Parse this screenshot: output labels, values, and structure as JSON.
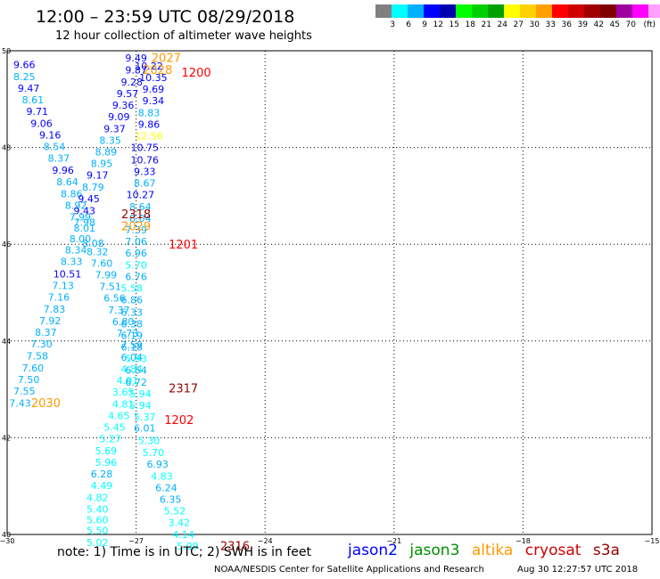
{
  "header": {
    "title": "12:00 – 23:59 UTC 08/29/2018",
    "subtitle": "12 hour collection of altimeter wave heights"
  },
  "color_legend": {
    "colors": [
      "#808080",
      "#00ffff",
      "#00b0ff",
      "#0000ff",
      "#0000b0",
      "#00ff00",
      "#00d000",
      "#00a000",
      "#ffff00",
      "#ffd000",
      "#ffa000",
      "#ff0000",
      "#d00000",
      "#a00000",
      "#800000",
      "#a000a0",
      "#ff00ff",
      "#ffa0ff",
      "#000000"
    ],
    "labels": [
      "3",
      "6",
      "9",
      "12",
      "15",
      "18",
      "21",
      "24",
      "27",
      "30",
      "33",
      "36",
      "39",
      "42",
      "45",
      "70",
      "(ft)"
    ]
  },
  "footer": {
    "note": "note: 1) Time is in UTC; 2) SWH is in feet",
    "credit": "NOAA/NESDIS Center for Satellite Applications and Research",
    "timestamp": "Aug 30 12:27:57 UTC 2018"
  },
  "satellites": [
    {
      "name": "jason2",
      "color": "#0000ff"
    },
    {
      "name": "jason3",
      "color": "#009000"
    },
    {
      "name": "altika",
      "color": "#ff9900"
    },
    {
      "name": "cryosat",
      "color": "#cc0000"
    },
    {
      "name": "s3a",
      "color": "#990000"
    }
  ],
  "chart_data": {
    "type": "scatter",
    "title": "12:00 – 23:59 UTC 08/29/2018",
    "subtitle": "12 hour collection of altimeter wave heights",
    "xlim": [
      -30,
      -15
    ],
    "ylim": [
      40,
      50
    ],
    "xticks": [
      -30,
      -27,
      -24,
      -21,
      -18,
      -15
    ],
    "yticks": [
      40,
      42,
      44,
      46,
      48,
      50
    ],
    "xtick_labels": [
      "−30",
      "−27",
      "−24",
      "−21",
      "−18",
      "−15"
    ],
    "ytick_labels": [
      "40",
      "42",
      "44",
      "46",
      "48",
      "50"
    ],
    "grid": true,
    "units": "ft",
    "points": [
      {
        "x": -29.6,
        "y": 49.7,
        "v": "9.66",
        "c": "#0000ff"
      },
      {
        "x": -29.6,
        "y": 49.45,
        "v": "8.25",
        "c": "#00b0ff"
      },
      {
        "x": -29.5,
        "y": 49.21,
        "v": "9.47",
        "c": "#0000ff"
      },
      {
        "x": -29.4,
        "y": 48.97,
        "v": "8.61",
        "c": "#00b0ff"
      },
      {
        "x": -29.3,
        "y": 48.73,
        "v": "9.71",
        "c": "#0000ff"
      },
      {
        "x": -29.2,
        "y": 48.48,
        "v": "9.06",
        "c": "#0000ff"
      },
      {
        "x": -29.0,
        "y": 48.24,
        "v": "9.16",
        "c": "#0000ff"
      },
      {
        "x": -28.9,
        "y": 48.0,
        "v": "8.54",
        "c": "#00b0ff"
      },
      {
        "x": -28.8,
        "y": 47.76,
        "v": "8.37",
        "c": "#00b0ff"
      },
      {
        "x": -28.7,
        "y": 47.51,
        "v": "9.96",
        "c": "#0000ff"
      },
      {
        "x": -28.6,
        "y": 47.27,
        "v": "8.64",
        "c": "#00b0ff"
      },
      {
        "x": -28.5,
        "y": 47.03,
        "v": "8.86",
        "c": "#00b0ff"
      },
      {
        "x": -28.4,
        "y": 46.79,
        "v": "8.92",
        "c": "#00b0ff"
      },
      {
        "x": -28.3,
        "y": 46.55,
        "v": "7.99",
        "c": "#00b0ff"
      },
      {
        "x": -28.2,
        "y": 46.32,
        "v": "8.01",
        "c": "#00b0ff"
      },
      {
        "x": -28.3,
        "y": 46.1,
        "v": "8.00",
        "c": "#00b0ff"
      },
      {
        "x": -28.4,
        "y": 45.87,
        "v": "8.34",
        "c": "#00b0ff"
      },
      {
        "x": -28.5,
        "y": 45.63,
        "v": "8.33",
        "c": "#00b0ff"
      },
      {
        "x": -28.6,
        "y": 45.37,
        "v": "10.51",
        "c": "#0000ff"
      },
      {
        "x": -28.7,
        "y": 45.13,
        "v": "7.13",
        "c": "#00b0ff"
      },
      {
        "x": -28.8,
        "y": 44.89,
        "v": "7.16",
        "c": "#00b0ff"
      },
      {
        "x": -28.9,
        "y": 44.64,
        "v": "7.83",
        "c": "#00b0ff"
      },
      {
        "x": -29.0,
        "y": 44.4,
        "v": "7.92",
        "c": "#00b0ff"
      },
      {
        "x": -29.1,
        "y": 44.16,
        "v": "8.37",
        "c": "#00b0ff"
      },
      {
        "x": -29.2,
        "y": 43.92,
        "v": "7.30",
        "c": "#00b0ff"
      },
      {
        "x": -29.3,
        "y": 43.67,
        "v": "7.58",
        "c": "#00b0ff"
      },
      {
        "x": -29.4,
        "y": 43.43,
        "v": "7.60",
        "c": "#00b0ff"
      },
      {
        "x": -29.5,
        "y": 43.19,
        "v": "7.50",
        "c": "#00b0ff"
      },
      {
        "x": -29.6,
        "y": 42.95,
        "v": "7.55",
        "c": "#00b0ff"
      },
      {
        "x": -29.7,
        "y": 42.7,
        "v": "7.43",
        "c": "#00b0ff"
      },
      {
        "x": -27.0,
        "y": 49.83,
        "v": "9.49",
        "c": "#0000ff"
      },
      {
        "x": -27.0,
        "y": 49.59,
        "v": "9.87",
        "c": "#0000ff"
      },
      {
        "x": -27.1,
        "y": 49.34,
        "v": "9.28",
        "c": "#0000ff"
      },
      {
        "x": -27.2,
        "y": 49.1,
        "v": "9.57",
        "c": "#0000ff"
      },
      {
        "x": -27.3,
        "y": 48.86,
        "v": "9.36",
        "c": "#0000ff"
      },
      {
        "x": -27.4,
        "y": 48.62,
        "v": "9.09",
        "c": "#0000ff"
      },
      {
        "x": -27.5,
        "y": 48.37,
        "v": "9.37",
        "c": "#0000ff"
      },
      {
        "x": -27.6,
        "y": 48.13,
        "v": "8.35",
        "c": "#00b0ff"
      },
      {
        "x": -27.7,
        "y": 47.89,
        "v": "8.89",
        "c": "#00b0ff"
      },
      {
        "x": -27.8,
        "y": 47.65,
        "v": "8.95",
        "c": "#00b0ff"
      },
      {
        "x": -27.9,
        "y": 47.41,
        "v": "9.17",
        "c": "#0000ff"
      },
      {
        "x": -28.0,
        "y": 47.16,
        "v": "8.79",
        "c": "#00b0ff"
      },
      {
        "x": -28.1,
        "y": 46.92,
        "v": "9.45",
        "c": "#0000ff"
      },
      {
        "x": -28.2,
        "y": 46.68,
        "v": "9.43",
        "c": "#0000ff"
      },
      {
        "x": -28.2,
        "y": 46.44,
        "v": "7.98",
        "c": "#00b0ff"
      },
      {
        "x": -28.0,
        "y": 46.0,
        "v": "8.08",
        "c": "#00b0ff"
      },
      {
        "x": -27.9,
        "y": 45.83,
        "v": "8.32",
        "c": "#00b0ff"
      },
      {
        "x": -27.8,
        "y": 45.59,
        "v": "7.60",
        "c": "#00b0ff"
      },
      {
        "x": -27.7,
        "y": 45.35,
        "v": "7.99",
        "c": "#00b0ff"
      },
      {
        "x": -27.6,
        "y": 45.11,
        "v": "7.51",
        "c": "#00b0ff"
      },
      {
        "x": -27.5,
        "y": 44.87,
        "v": "6.56",
        "c": "#00b0ff"
      },
      {
        "x": -27.4,
        "y": 44.62,
        "v": "7.37",
        "c": "#00b0ff"
      },
      {
        "x": -27.3,
        "y": 44.38,
        "v": "6.80",
        "c": "#00b0ff"
      },
      {
        "x": -27.2,
        "y": 44.14,
        "v": "7.73",
        "c": "#00b0ff"
      },
      {
        "x": -27.1,
        "y": 43.9,
        "v": "7.59",
        "c": "#00b0ff"
      },
      {
        "x": -27.1,
        "y": 43.65,
        "v": "6.04",
        "c": "#00b0ff"
      },
      {
        "x": -27.1,
        "y": 43.41,
        "v": "4.84",
        "c": "#00ffff"
      },
      {
        "x": -27.2,
        "y": 43.17,
        "v": "4.91",
        "c": "#00ffff"
      },
      {
        "x": -27.3,
        "y": 42.93,
        "v": "3.65",
        "c": "#00ffff"
      },
      {
        "x": -27.3,
        "y": 42.68,
        "v": "4.81",
        "c": "#00ffff"
      },
      {
        "x": -27.4,
        "y": 42.44,
        "v": "4.65",
        "c": "#00ffff"
      },
      {
        "x": -27.5,
        "y": 42.2,
        "v": "5.45",
        "c": "#00ffff"
      },
      {
        "x": -27.6,
        "y": 41.96,
        "v": "5.27",
        "c": "#00ffff"
      },
      {
        "x": -27.7,
        "y": 41.71,
        "v": "5.69",
        "c": "#00ffff"
      },
      {
        "x": -27.7,
        "y": 41.47,
        "v": "5.96",
        "c": "#00ffff"
      },
      {
        "x": -27.8,
        "y": 41.23,
        "v": "6.28",
        "c": "#00b0ff"
      },
      {
        "x": -27.8,
        "y": 40.99,
        "v": "4.49",
        "c": "#00ffff"
      },
      {
        "x": -27.9,
        "y": 40.75,
        "v": "4.82",
        "c": "#00ffff"
      },
      {
        "x": -27.9,
        "y": 40.51,
        "v": "5.40",
        "c": "#00ffff"
      },
      {
        "x": -27.9,
        "y": 40.29,
        "v": "5.60",
        "c": "#00ffff"
      },
      {
        "x": -27.9,
        "y": 40.06,
        "v": "5.50",
        "c": "#00ffff"
      },
      {
        "x": -27.9,
        "y": 39.82,
        "v": "5.02",
        "c": "#00ffff"
      },
      {
        "x": -26.7,
        "y": 49.67,
        "v": "10.22",
        "c": "#0000ff"
      },
      {
        "x": -26.6,
        "y": 49.43,
        "v": "10.35",
        "c": "#0000ff"
      },
      {
        "x": -26.6,
        "y": 49.19,
        "v": "9.69",
        "c": "#0000ff"
      },
      {
        "x": -26.6,
        "y": 48.95,
        "v": "9.34",
        "c": "#0000ff"
      },
      {
        "x": -26.7,
        "y": 48.7,
        "v": "8.83",
        "c": "#00b0ff"
      },
      {
        "x": -26.7,
        "y": 48.46,
        "v": "9.86",
        "c": "#0000ff"
      },
      {
        "x": -26.7,
        "y": 48.22,
        "v": "12.56",
        "c": "#ffff00"
      },
      {
        "x": -26.8,
        "y": 47.98,
        "v": "10.75",
        "c": "#0000ff"
      },
      {
        "x": -26.8,
        "y": 47.73,
        "v": "10.76",
        "c": "#0000ff"
      },
      {
        "x": -26.8,
        "y": 47.49,
        "v": "9.33",
        "c": "#0000ff"
      },
      {
        "x": -26.8,
        "y": 47.25,
        "v": "8.67",
        "c": "#00b0ff"
      },
      {
        "x": -26.9,
        "y": 47.01,
        "v": "10.27",
        "c": "#0000ff"
      },
      {
        "x": -26.9,
        "y": 46.76,
        "v": "8.64",
        "c": "#00b0ff"
      },
      {
        "x": -26.9,
        "y": 46.52,
        "v": "8.04",
        "c": "#00b0ff"
      },
      {
        "x": -27.0,
        "y": 46.28,
        "v": "7.39",
        "c": "#00b0ff"
      },
      {
        "x": -27.0,
        "y": 46.04,
        "v": "7.06",
        "c": "#00b0ff"
      },
      {
        "x": -27.0,
        "y": 45.8,
        "v": "6.96",
        "c": "#00b0ff"
      },
      {
        "x": -27.0,
        "y": 45.55,
        "v": "5.70",
        "c": "#00ffff"
      },
      {
        "x": -27.0,
        "y": 45.31,
        "v": "6.76",
        "c": "#00b0ff"
      },
      {
        "x": -27.1,
        "y": 45.07,
        "v": "5.58",
        "c": "#00ffff"
      },
      {
        "x": -27.1,
        "y": 44.83,
        "v": "6.86",
        "c": "#00b0ff"
      },
      {
        "x": -27.1,
        "y": 44.58,
        "v": "6.33",
        "c": "#00b0ff"
      },
      {
        "x": -27.1,
        "y": 44.34,
        "v": "6.38",
        "c": "#00b0ff"
      },
      {
        "x": -27.1,
        "y": 44.1,
        "v": "6.19",
        "c": "#00b0ff"
      },
      {
        "x": -27.1,
        "y": 43.86,
        "v": "6.18",
        "c": "#00b0ff"
      },
      {
        "x": -27.0,
        "y": 43.62,
        "v": "5.93",
        "c": "#00ffff"
      },
      {
        "x": -27.0,
        "y": 43.38,
        "v": "6.54",
        "c": "#00b0ff"
      },
      {
        "x": -27.0,
        "y": 43.13,
        "v": "6.72",
        "c": "#00b0ff"
      },
      {
        "x": -26.9,
        "y": 42.89,
        "v": "5.94",
        "c": "#00ffff"
      },
      {
        "x": -26.9,
        "y": 42.65,
        "v": "5.94",
        "c": "#00ffff"
      },
      {
        "x": -26.8,
        "y": 42.41,
        "v": "5.37",
        "c": "#00ffff"
      },
      {
        "x": -26.8,
        "y": 42.18,
        "v": "6.01",
        "c": "#00b0ff"
      },
      {
        "x": -26.7,
        "y": 41.92,
        "v": "5.30",
        "c": "#00ffff"
      },
      {
        "x": -26.6,
        "y": 41.68,
        "v": "5.70",
        "c": "#00ffff"
      },
      {
        "x": -26.5,
        "y": 41.44,
        "v": "6.93",
        "c": "#00b0ff"
      },
      {
        "x": -26.4,
        "y": 41.19,
        "v": "4.83",
        "c": "#00ffff"
      },
      {
        "x": -26.3,
        "y": 40.95,
        "v": "6.24",
        "c": "#00b0ff"
      },
      {
        "x": -26.2,
        "y": 40.71,
        "v": "6.35",
        "c": "#00b0ff"
      },
      {
        "x": -26.1,
        "y": 40.47,
        "v": "5.52",
        "c": "#00ffff"
      },
      {
        "x": -26.0,
        "y": 40.23,
        "v": "3.42",
        "c": "#00ffff"
      },
      {
        "x": -25.9,
        "y": 39.98,
        "v": "4.14",
        "c": "#00ffff"
      },
      {
        "x": -25.8,
        "y": 39.74,
        "v": "5.09",
        "c": "#00ffff"
      }
    ],
    "time_labels": [
      {
        "x": -26.3,
        "y": 49.83,
        "v": "2027",
        "c": "#ff9900"
      },
      {
        "x": -26.5,
        "y": 49.59,
        "v": "2028",
        "c": "#ff9900"
      },
      {
        "x": -25.6,
        "y": 49.53,
        "v": "1200",
        "c": "#ff0000"
      },
      {
        "x": -27.0,
        "y": 46.6,
        "v": "2318",
        "c": "#990000"
      },
      {
        "x": -27.0,
        "y": 46.35,
        "v": "2029",
        "c": "#ff9900"
      },
      {
        "x": -25.9,
        "y": 45.98,
        "v": "1201",
        "c": "#ff0000"
      },
      {
        "x": -25.9,
        "y": 43.0,
        "v": "2317",
        "c": "#990000"
      },
      {
        "x": -29.1,
        "y": 42.7,
        "v": "2030",
        "c": "#ff9900"
      },
      {
        "x": -26.0,
        "y": 42.35,
        "v": "1202",
        "c": "#ff0000"
      },
      {
        "x": -24.7,
        "y": 39.74,
        "v": "2316",
        "c": "#990000"
      }
    ]
  }
}
